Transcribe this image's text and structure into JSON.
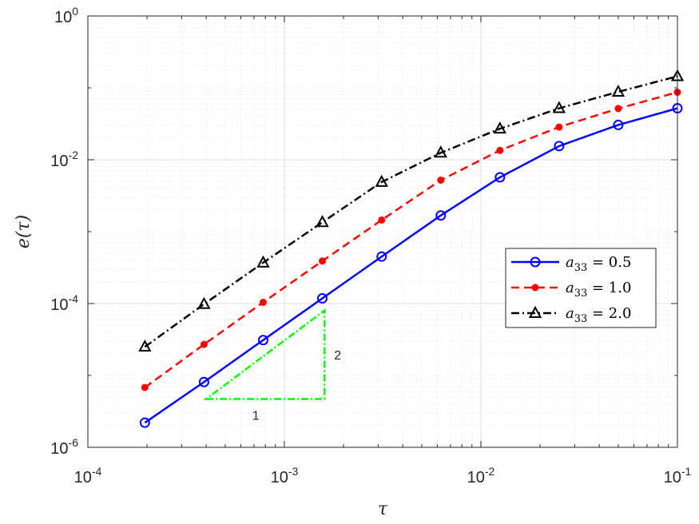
{
  "chart_data": {
    "type": "line",
    "xscale": "log",
    "yscale": "log",
    "xlim": [
      0.0001,
      0.1
    ],
    "ylim": [
      1e-06,
      1
    ],
    "xlabel": "τ",
    "ylabel": "e(τ)",
    "grid": true,
    "minor_grid": true,
    "legend_position": "right",
    "x_ticks": [
      {
        "value": 0.0001,
        "base": "10",
        "exp": "-4"
      },
      {
        "value": 0.001,
        "base": "10",
        "exp": "-3"
      },
      {
        "value": 0.01,
        "base": "10",
        "exp": "-2"
      },
      {
        "value": 0.1,
        "base": "10",
        "exp": "-1"
      }
    ],
    "y_ticks": [
      {
        "value": 1e-06,
        "base": "10",
        "exp": "-6"
      },
      {
        "value": 0.0001,
        "base": "10",
        "exp": "-4"
      },
      {
        "value": 0.01,
        "base": "10",
        "exp": "-2"
      },
      {
        "value": 1,
        "base": "10",
        "exp": "0"
      }
    ],
    "x": [
      0.000195,
      0.00039,
      0.00078,
      0.00156,
      0.003125,
      0.00625,
      0.0125,
      0.025,
      0.05,
      0.1
    ],
    "series": [
      {
        "name_sub": "33",
        "name_value": "0.5",
        "color": "#0000ff",
        "dash": "solid",
        "marker": "circle",
        "values": [
          2.2e-06,
          8.1e-06,
          3.1e-05,
          0.000118,
          0.00045,
          0.00168,
          0.0057,
          0.0155,
          0.0305,
          0.052
        ]
      },
      {
        "name_sub": "33",
        "name_value": "1.0",
        "color": "#ff0000",
        "dash": "dashed",
        "marker": "dot",
        "values": [
          6.8e-06,
          2.7e-05,
          0.000104,
          0.00039,
          0.00145,
          0.0052,
          0.0135,
          0.0285,
          0.0515,
          0.087
        ]
      },
      {
        "name_sub": "33",
        "name_value": "2.0",
        "color": "#000000",
        "dash": "dashdot",
        "marker": "triangle",
        "values": [
          2.5e-05,
          9.8e-05,
          0.00037,
          0.00135,
          0.0049,
          0.0125,
          0.027,
          0.052,
          0.088,
          0.145
        ]
      }
    ],
    "annotation": {
      "type": "slope-triangle",
      "color": "#00ff00",
      "horizontal_label": "1",
      "vertical_label": "2",
      "x0": 0.0004,
      "x1": 0.0016,
      "y_low": 4.7e-06,
      "y_high": 8e-05
    }
  }
}
